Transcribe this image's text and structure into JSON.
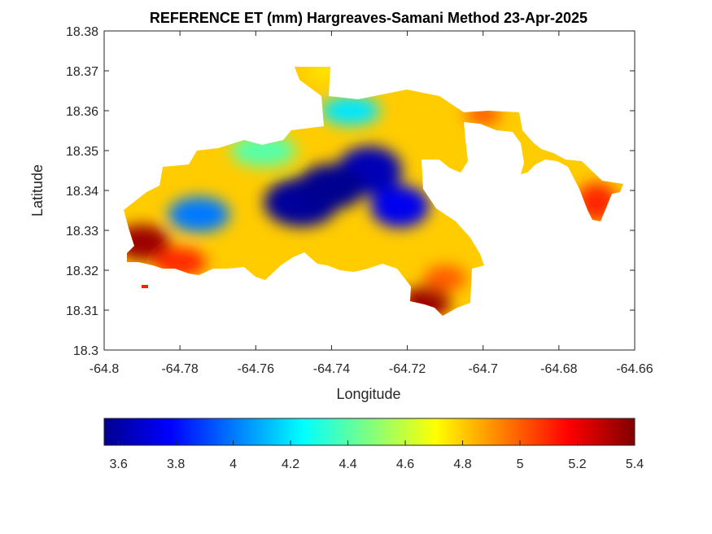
{
  "chart_data": {
    "type": "heatmap",
    "title": "REFERENCE ET (mm) Hargreaves-Samani Method  23-Apr-2025",
    "xlabel": "Longitude",
    "ylabel": "Latitude",
    "xlim": [
      -64.8,
      -64.66
    ],
    "ylim": [
      18.3,
      18.38
    ],
    "xticks": [
      "-64.8",
      "-64.78",
      "-64.76",
      "-64.74",
      "-64.72",
      "-64.7",
      "-64.68",
      "-64.66"
    ],
    "yticks": [
      "18.3",
      "18.31",
      "18.32",
      "18.33",
      "18.34",
      "18.35",
      "18.36",
      "18.37",
      "18.38"
    ],
    "colorbar": {
      "colormap": "jet",
      "range": [
        3.55,
        5.4
      ],
      "ticks": [
        "3.6",
        "3.8",
        "4",
        "4.2",
        "4.4",
        "4.6",
        "4.8",
        "5",
        "5.2",
        "5.4"
      ]
    },
    "grid": false,
    "field_samples": [
      {
        "lon": -64.748,
        "lat": 18.337,
        "et": 3.6
      },
      {
        "lon": -64.74,
        "lat": 18.341,
        "et": 3.58
      },
      {
        "lon": -64.73,
        "lat": 18.345,
        "et": 3.65
      },
      {
        "lon": -64.722,
        "lat": 18.336,
        "et": 3.75
      },
      {
        "lon": -64.775,
        "lat": 18.334,
        "et": 4.0
      },
      {
        "lon": -64.758,
        "lat": 18.35,
        "et": 4.4
      },
      {
        "lon": -64.735,
        "lat": 18.36,
        "et": 4.2
      },
      {
        "lon": -64.79,
        "lat": 18.327,
        "et": 5.35
      },
      {
        "lon": -64.78,
        "lat": 18.322,
        "et": 5.1
      },
      {
        "lon": -64.715,
        "lat": 18.312,
        "et": 5.35
      },
      {
        "lon": -64.71,
        "lat": 18.318,
        "et": 5.0
      },
      {
        "lon": -64.67,
        "lat": 18.337,
        "et": 5.1
      },
      {
        "lon": -64.7,
        "lat": 18.359,
        "et": 5.0
      },
      {
        "lon": -64.742,
        "lat": 18.37,
        "et": 4.75
      }
    ]
  }
}
